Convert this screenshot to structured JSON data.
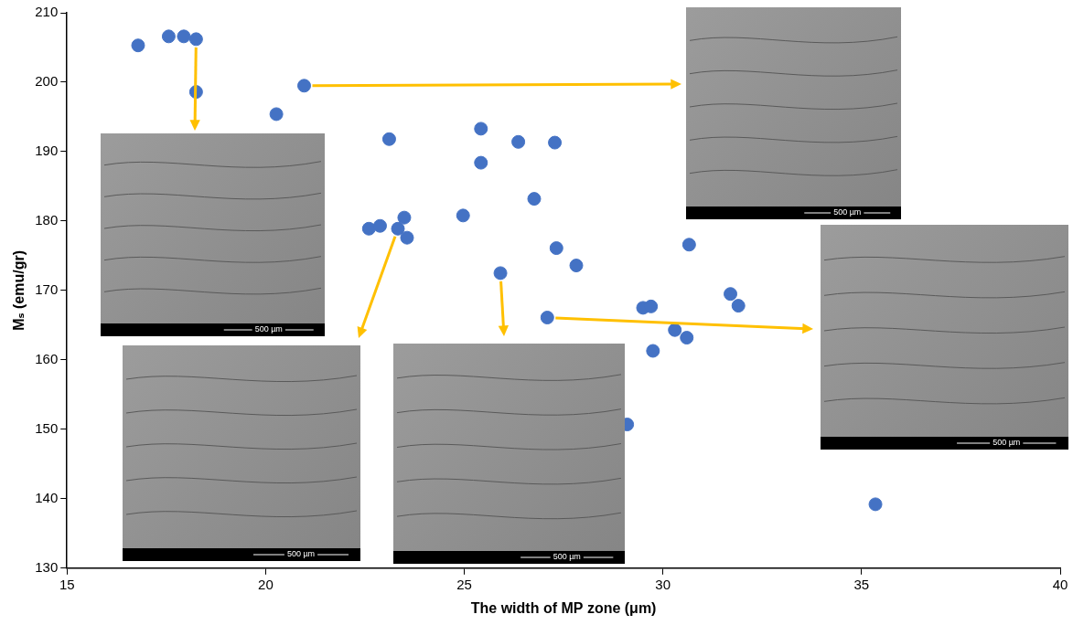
{
  "chart_data": {
    "type": "scatter",
    "x_label": "The width of MP zone (μm)",
    "y_label": "Mₛ (emu/gr)",
    "x": [
      16.79,
      17.56,
      17.94,
      18.25,
      18.25,
      20.27,
      20.97,
      23.11,
      25.42,
      25.42,
      26.36,
      27.28,
      26.76,
      24.97,
      22.6,
      22.88,
      23.33,
      23.49,
      23.56,
      27.32,
      27.82,
      30.66,
      25.91,
      27.09,
      29.5,
      29.7,
      29.75,
      30.3,
      30.6,
      31.7,
      31.9,
      29.1,
      35.35
    ],
    "values": [
      205.3,
      206.6,
      206.6,
      206.2,
      198.6,
      195.4,
      199.5,
      191.8,
      193.3,
      188.4,
      191.4,
      191.3,
      183.2,
      180.8,
      178.9,
      179.3,
      178.9,
      180.5,
      177.6,
      176.1,
      173.6,
      176.6,
      172.5,
      166.1,
      167.5,
      167.7,
      161.3,
      164.3,
      163.2,
      169.5,
      167.8,
      150.7,
      139.2
    ],
    "color": "#4472c4",
    "marker": "circle",
    "xlim": [
      15,
      40
    ],
    "xticks": [
      15,
      20,
      25,
      30,
      35,
      40
    ],
    "ylim": [
      130,
      210
    ],
    "yticks": [
      130,
      140,
      150,
      160,
      170,
      180,
      190,
      200,
      210
    ],
    "grid": false,
    "insets": [
      {
        "x": 18.25,
        "y": 206.2,
        "scale_bar": "500 µm"
      },
      {
        "x": 20.97,
        "y": 199.5,
        "scale_bar": "500 µm"
      },
      {
        "x": 23.33,
        "y": 178.9,
        "scale_bar": "500 µm"
      },
      {
        "x": 25.91,
        "y": 172.5,
        "scale_bar": "500 µm"
      },
      {
        "x": 27.09,
        "y": 166.1,
        "scale_bar": "500 µm"
      }
    ]
  }
}
